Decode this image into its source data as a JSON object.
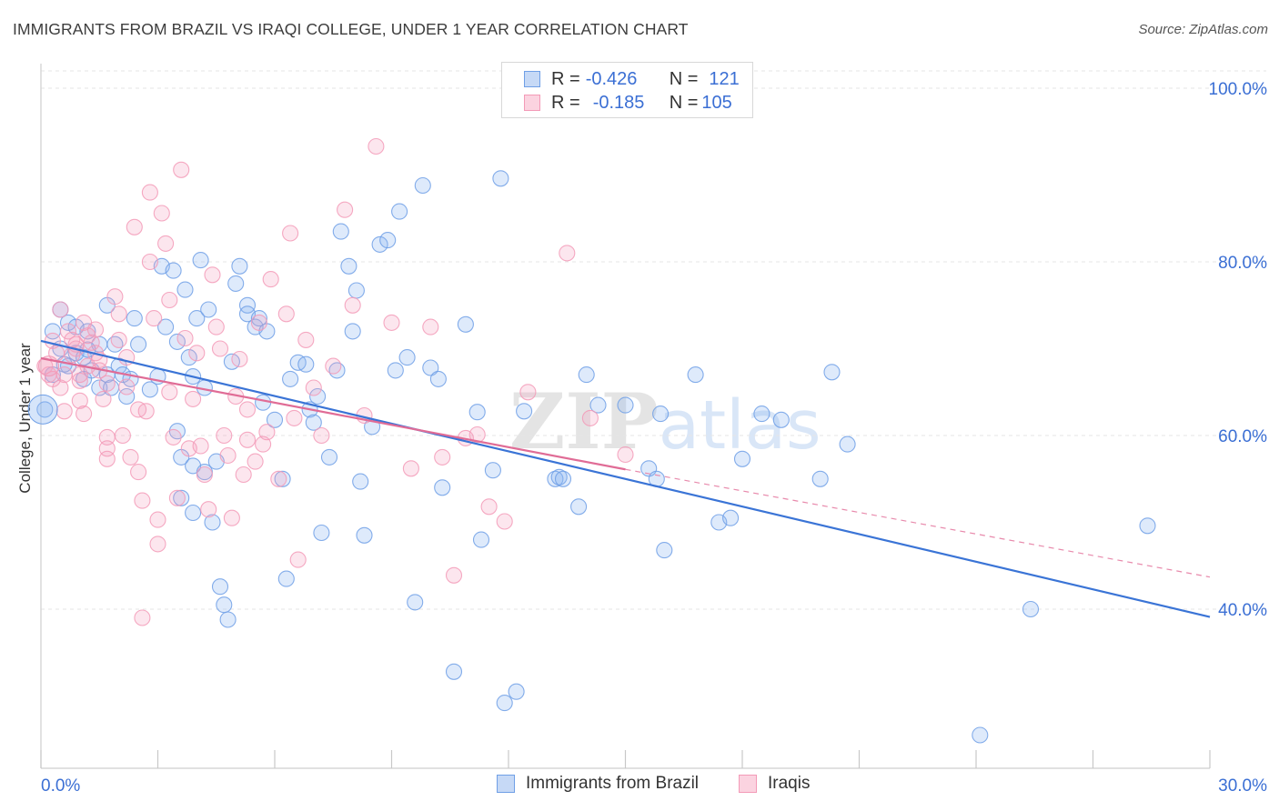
{
  "title": "IMMIGRANTS FROM BRAZIL VS IRAQI COLLEGE, UNDER 1 YEAR CORRELATION CHART",
  "source": "Source: ZipAtlas.com",
  "watermark": "ZIPatlas",
  "legend": {
    "rows": [
      {
        "r_label": "R = ",
        "r_value": "-0.426",
        "n_label": "N = ",
        "n_value": "121",
        "color": "#6f9fe6",
        "fill": "#c6d9f6"
      },
      {
        "r_label": "R = ",
        "r_value": "-0.185",
        "n_label": "N = ",
        "n_value": "105",
        "color": "#f39ab7",
        "fill": "#fbd3e0"
      }
    ]
  },
  "bottom_legend": {
    "items": [
      {
        "label": "Immigrants from Brazil",
        "color": "#6f9fe6",
        "fill": "#c6d9f6"
      },
      {
        "label": "Iraqis",
        "color": "#f39ab7",
        "fill": "#fbd3e0"
      }
    ]
  },
  "chart_data": {
    "type": "scatter",
    "title": "IMMIGRANTS FROM BRAZIL VS IRAQI COLLEGE, UNDER 1 YEAR CORRELATION CHART",
    "xlabel": "",
    "ylabel": "College, Under 1 year",
    "xlim": [
      0,
      30
    ],
    "ylim": [
      22,
      103
    ],
    "x_ticks": [
      {
        "value": 0,
        "label": "0.0%"
      },
      {
        "value": 30,
        "label": "30.0%"
      }
    ],
    "y_ticks": [
      {
        "value": 40,
        "label": "40.0%"
      },
      {
        "value": 60,
        "label": "60.0%"
      },
      {
        "value": 80,
        "label": "80.0%"
      },
      {
        "value": 100,
        "label": "100.0%"
      }
    ],
    "grid": true,
    "legend_position": "top-center",
    "series": [
      {
        "name": "Immigrants from Brazil",
        "color": "#6f9fe6",
        "trend": {
          "x": [
            0,
            30
          ],
          "y": [
            70.9,
            39.1
          ],
          "style": "solid"
        },
        "points": [
          [
            0.1,
            63
          ],
          [
            0.3,
            72
          ],
          [
            0.3,
            67
          ],
          [
            0.5,
            74.5
          ],
          [
            0.5,
            70
          ],
          [
            0.7,
            73
          ],
          [
            0.7,
            68
          ],
          [
            0.9,
            72.5
          ],
          [
            0.9,
            69.5
          ],
          [
            1.1,
            69
          ],
          [
            1.1,
            66.5
          ],
          [
            1.2,
            72
          ],
          [
            1.3,
            67.5
          ],
          [
            1.5,
            65.5
          ],
          [
            1.5,
            70.5
          ],
          [
            1.7,
            75
          ],
          [
            1.7,
            67
          ],
          [
            1.8,
            65.5
          ],
          [
            1.9,
            70.5
          ],
          [
            2.0,
            68
          ],
          [
            2.1,
            67
          ],
          [
            2.2,
            64.5
          ],
          [
            2.3,
            66.5
          ],
          [
            2.5,
            70.5
          ],
          [
            2.4,
            73.5
          ],
          [
            2.8,
            65.3
          ],
          [
            3.0,
            66.8
          ],
          [
            3.1,
            79.5
          ],
          [
            3.2,
            72.5
          ],
          [
            3.4,
            79
          ],
          [
            3.5,
            70.8
          ],
          [
            3.5,
            60.5
          ],
          [
            3.6,
            57.5
          ],
          [
            3.6,
            52.8
          ],
          [
            3.7,
            76.8
          ],
          [
            3.8,
            69
          ],
          [
            3.9,
            56.5
          ],
          [
            3.9,
            66.8
          ],
          [
            4.0,
            73.5
          ],
          [
            4.1,
            80.2
          ],
          [
            4.2,
            65.5
          ],
          [
            4.3,
            74.5
          ],
          [
            4.4,
            50
          ],
          [
            4.5,
            57
          ],
          [
            4.6,
            42.6
          ],
          [
            4.7,
            40.5
          ],
          [
            4.8,
            38.8
          ],
          [
            4.9,
            68.5
          ],
          [
            5.0,
            77.5
          ],
          [
            5.1,
            79.5
          ],
          [
            5.3,
            75
          ],
          [
            5.3,
            74
          ],
          [
            5.5,
            72.5
          ],
          [
            5.6,
            73.5
          ],
          [
            5.7,
            63.8
          ],
          [
            5.8,
            72
          ],
          [
            6.0,
            61.8
          ],
          [
            6.2,
            55
          ],
          [
            6.3,
            43.5
          ],
          [
            6.4,
            66.5
          ],
          [
            6.6,
            68.4
          ],
          [
            6.8,
            68.2
          ],
          [
            6.9,
            63
          ],
          [
            7.1,
            64.5
          ],
          [
            7.0,
            61.5
          ],
          [
            7.2,
            48.8
          ],
          [
            7.4,
            57.5
          ],
          [
            7.6,
            67.5
          ],
          [
            7.7,
            83.5
          ],
          [
            7.9,
            79.5
          ],
          [
            8.0,
            72
          ],
          [
            8.1,
            76.7
          ],
          [
            8.2,
            54.7
          ],
          [
            8.3,
            48.5
          ],
          [
            8.5,
            61
          ],
          [
            8.7,
            82
          ],
          [
            8.9,
            82.5
          ],
          [
            9.1,
            67.5
          ],
          [
            9.2,
            85.8
          ],
          [
            9.4,
            69
          ],
          [
            9.6,
            40.8
          ],
          [
            9.8,
            88.8
          ],
          [
            10.0,
            67.8
          ],
          [
            10.2,
            66.5
          ],
          [
            10.3,
            54
          ],
          [
            10.6,
            32.8
          ],
          [
            10.9,
            72.8
          ],
          [
            11.2,
            62.7
          ],
          [
            11.3,
            48
          ],
          [
            11.6,
            56
          ],
          [
            11.8,
            89.6
          ],
          [
            11.9,
            29.2
          ],
          [
            12.4,
            62.8
          ],
          [
            13.2,
            55
          ],
          [
            13.3,
            55.2
          ],
          [
            13.4,
            55
          ],
          [
            13.8,
            51.8
          ],
          [
            14.0,
            67
          ],
          [
            14.3,
            63.5
          ],
          [
            15.0,
            63.5
          ],
          [
            15.6,
            56.2
          ],
          [
            15.8,
            55
          ],
          [
            15.9,
            62.5
          ],
          [
            16.0,
            46.8
          ],
          [
            16.8,
            67
          ],
          [
            17.4,
            50
          ],
          [
            17.7,
            50.5
          ],
          [
            18.0,
            57.3
          ],
          [
            18.5,
            62.5
          ],
          [
            19.0,
            61.8
          ],
          [
            20.0,
            55
          ],
          [
            20.3,
            67.3
          ],
          [
            20.7,
            59
          ],
          [
            24.1,
            25.5
          ],
          [
            25.4,
            40
          ],
          [
            28.4,
            49.6
          ],
          [
            12.2,
            30.5
          ],
          [
            4.2,
            55.8
          ],
          [
            3.9,
            51.1
          ],
          [
            1.2,
            69.9
          ],
          [
            0.6,
            68.2
          ]
        ]
      },
      {
        "name": "Iraqis",
        "color": "#f39ab7",
        "trend": {
          "x": [
            0,
            15
          ],
          "y": [
            68.9,
            56.1
          ],
          "style": "solid"
        },
        "trend_extended": {
          "x": [
            15,
            30
          ],
          "y": [
            56.1,
            43.7
          ],
          "style": "dashed"
        },
        "points": [
          [
            0.1,
            68
          ],
          [
            0.2,
            67
          ],
          [
            0.3,
            66.5
          ],
          [
            0.4,
            69.5
          ],
          [
            0.5,
            74.5
          ],
          [
            0.5,
            65.5
          ],
          [
            0.6,
            67
          ],
          [
            0.7,
            72
          ],
          [
            0.8,
            71
          ],
          [
            0.9,
            70
          ],
          [
            1.0,
            64
          ],
          [
            1.0,
            66.3
          ],
          [
            1.1,
            62.5
          ],
          [
            1.1,
            73
          ],
          [
            1.2,
            68
          ],
          [
            1.3,
            70.7
          ],
          [
            1.4,
            69.5
          ],
          [
            1.5,
            67.5
          ],
          [
            1.6,
            64.2
          ],
          [
            1.7,
            66
          ],
          [
            1.7,
            59.8
          ],
          [
            1.7,
            58.5
          ],
          [
            1.7,
            57.3
          ],
          [
            1.9,
            76
          ],
          [
            2.0,
            74
          ],
          [
            2.0,
            71
          ],
          [
            2.1,
            60
          ],
          [
            2.2,
            69
          ],
          [
            2.2,
            65.6
          ],
          [
            2.3,
            57.5
          ],
          [
            2.4,
            84
          ],
          [
            2.5,
            63
          ],
          [
            2.5,
            55.8
          ],
          [
            2.6,
            52.5
          ],
          [
            2.6,
            39
          ],
          [
            2.7,
            62.8
          ],
          [
            2.8,
            88
          ],
          [
            2.8,
            80
          ],
          [
            2.9,
            73.5
          ],
          [
            3.0,
            50.3
          ],
          [
            3.0,
            47.5
          ],
          [
            3.1,
            85.6
          ],
          [
            3.2,
            82.1
          ],
          [
            3.3,
            75.6
          ],
          [
            3.3,
            65
          ],
          [
            3.4,
            59.8
          ],
          [
            3.5,
            52.8
          ],
          [
            3.6,
            90.6
          ],
          [
            3.7,
            71.2
          ],
          [
            3.8,
            58.5
          ],
          [
            3.9,
            64.2
          ],
          [
            4.0,
            69.5
          ],
          [
            4.1,
            58.8
          ],
          [
            4.2,
            55.5
          ],
          [
            4.3,
            51.5
          ],
          [
            4.4,
            78.5
          ],
          [
            4.5,
            72.5
          ],
          [
            4.6,
            70
          ],
          [
            4.7,
            60
          ],
          [
            4.8,
            57.7
          ],
          [
            4.9,
            50.5
          ],
          [
            5.0,
            64.5
          ],
          [
            5.1,
            68.8
          ],
          [
            5.2,
            55.5
          ],
          [
            5.3,
            59.5
          ],
          [
            5.3,
            63
          ],
          [
            5.5,
            57
          ],
          [
            5.6,
            73
          ],
          [
            5.7,
            59
          ],
          [
            5.8,
            60.4
          ],
          [
            5.9,
            78
          ],
          [
            6.1,
            55
          ],
          [
            6.3,
            74
          ],
          [
            6.4,
            83.3
          ],
          [
            6.5,
            62
          ],
          [
            6.6,
            45.7
          ],
          [
            6.8,
            71
          ],
          [
            7.0,
            65.5
          ],
          [
            7.2,
            60
          ],
          [
            7.5,
            68
          ],
          [
            7.8,
            86
          ],
          [
            8.0,
            75
          ],
          [
            8.3,
            62.3
          ],
          [
            8.6,
            93.3
          ],
          [
            9.0,
            73
          ],
          [
            9.5,
            56.2
          ],
          [
            10.0,
            72.5
          ],
          [
            10.3,
            57.5
          ],
          [
            10.6,
            43.9
          ],
          [
            10.9,
            59.7
          ],
          [
            11.2,
            60.1
          ],
          [
            11.5,
            51.8
          ],
          [
            11.9,
            50.1
          ],
          [
            12.5,
            65
          ],
          [
            13.5,
            81
          ],
          [
            14.1,
            62
          ],
          [
            15.0,
            57.8
          ],
          [
            0.3,
            70.9
          ],
          [
            0.6,
            62.8
          ],
          [
            0.8,
            69.3
          ],
          [
            0.9,
            70.5
          ],
          [
            1.0,
            67
          ],
          [
            1.2,
            71.5
          ],
          [
            1.4,
            72.2
          ],
          [
            1.5,
            68.7
          ]
        ]
      }
    ]
  }
}
